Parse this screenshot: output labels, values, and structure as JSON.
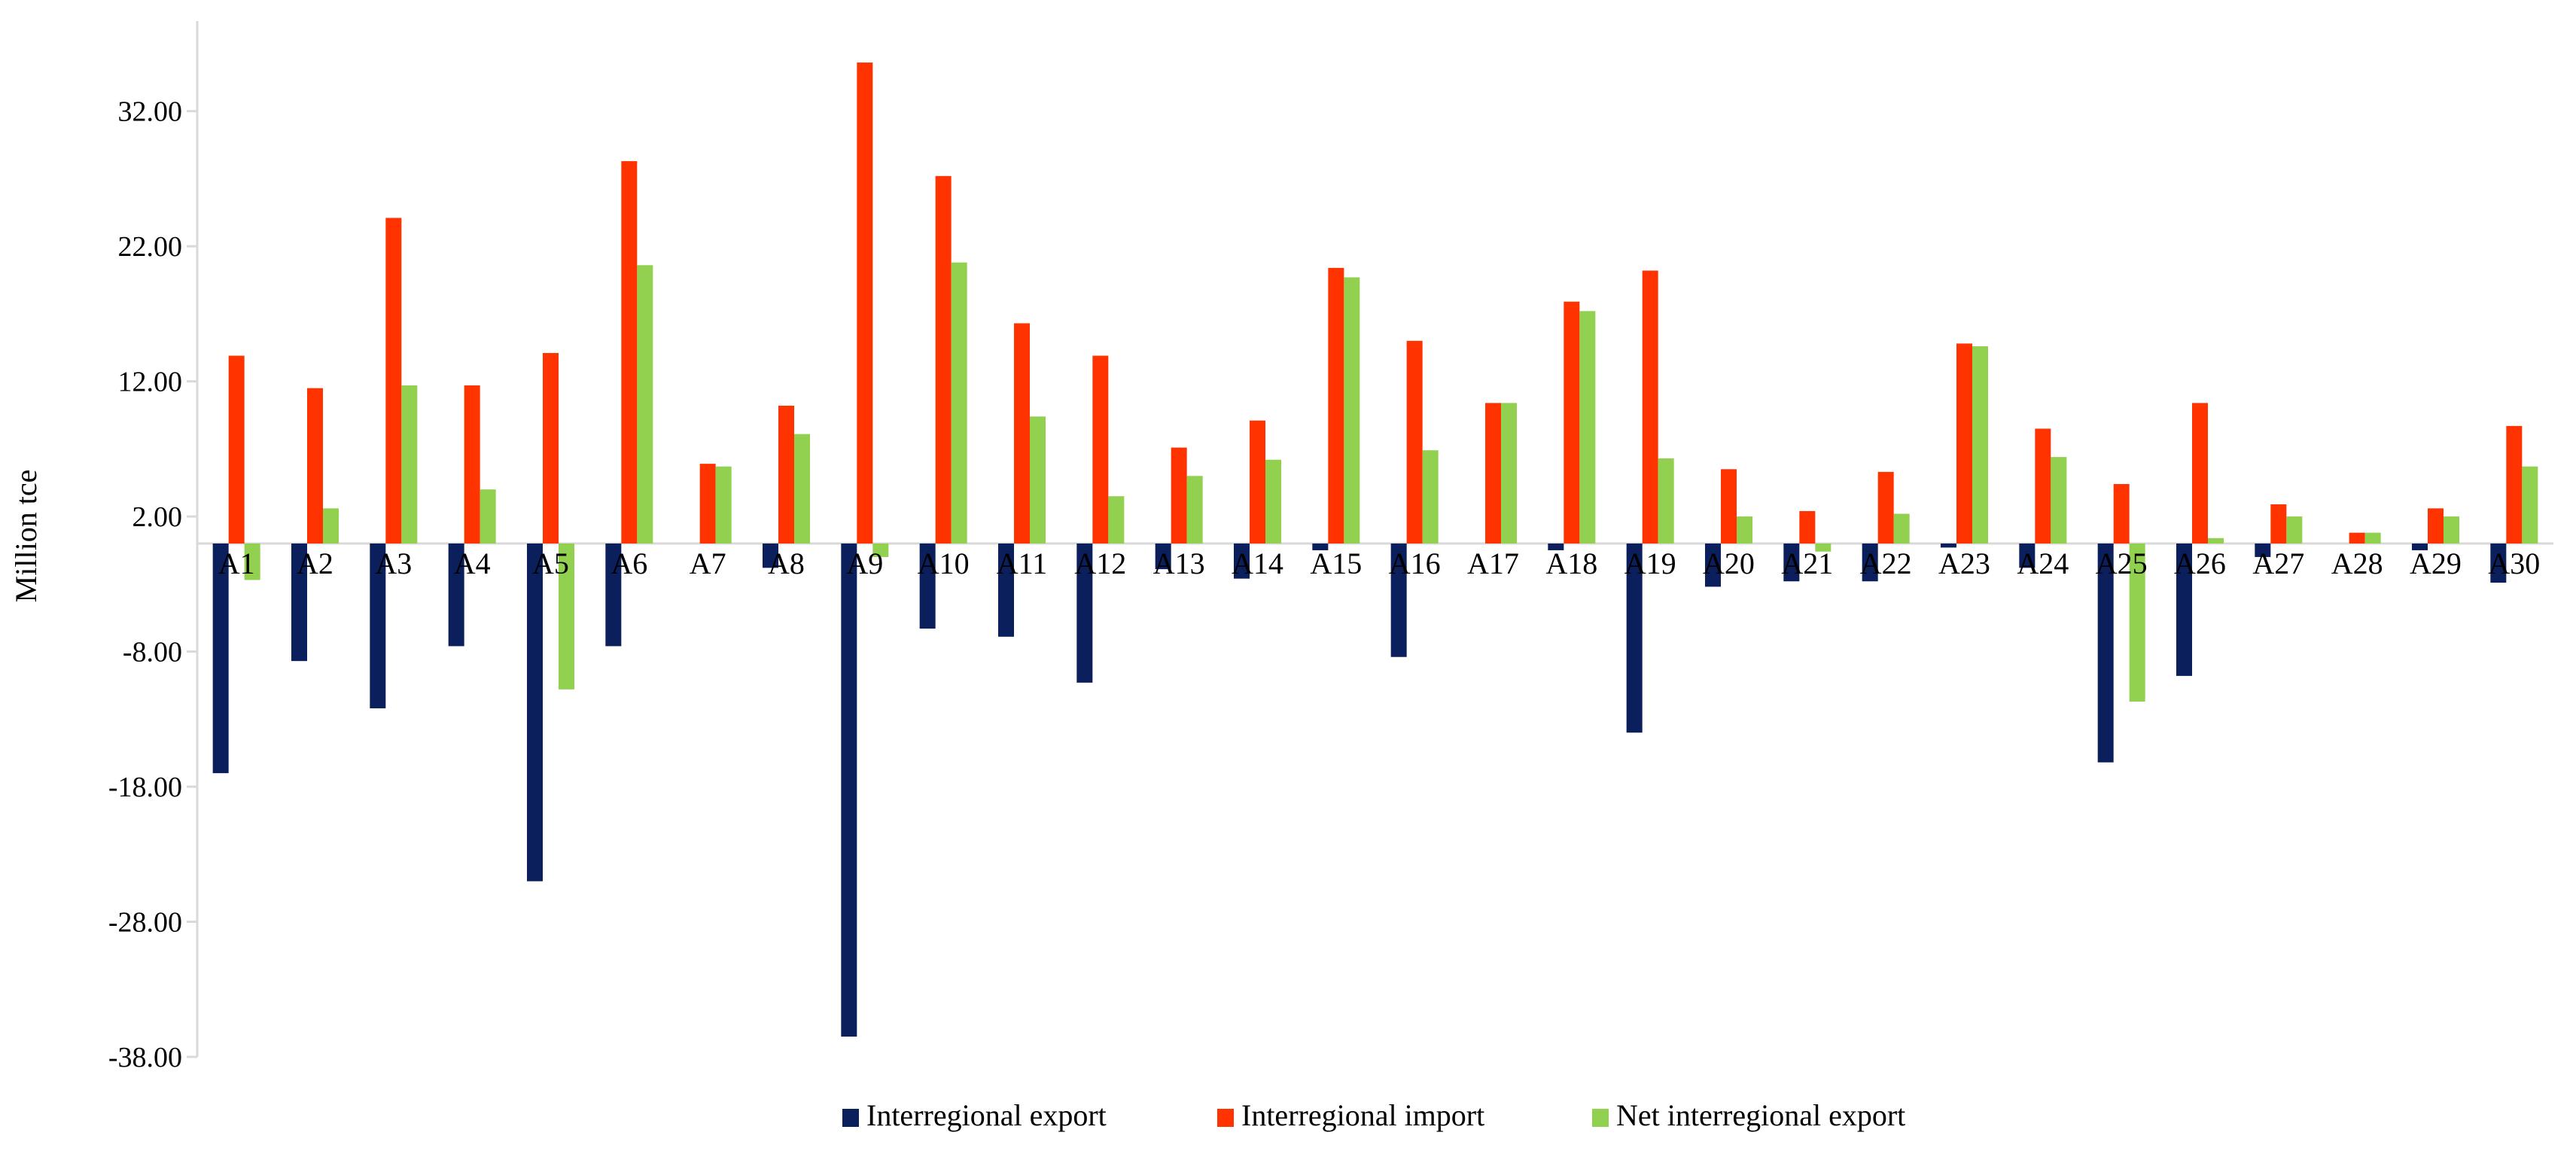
{
  "chart_data": {
    "type": "bar",
    "ylabel": "Million tce",
    "ylim": [
      -38,
      38
    ],
    "yticks": [
      32,
      22,
      12,
      2,
      -8,
      -18,
      -28,
      -38
    ],
    "ytick_labels": [
      "32.00",
      "22.00",
      "12.00",
      "2.00",
      "-8.00",
      "-18.00",
      "-28.00",
      "-38.00"
    ],
    "grid": false,
    "legend_position": "bottom",
    "categories": [
      "A1",
      "A2",
      "A3",
      "A4",
      "A5",
      "A6",
      "A7",
      "A8",
      "A9",
      "A10",
      "A11",
      "A12",
      "A13",
      "A14",
      "A15",
      "A16",
      "A17",
      "A18",
      "A19",
      "A20",
      "A21",
      "A22",
      "A23",
      "A24",
      "A25",
      "A26",
      "A27",
      "A28",
      "A29",
      "A30"
    ],
    "series": [
      {
        "name": "Interregional export",
        "color": "#0b1f5c",
        "values": [
          -17.0,
          -8.7,
          -12.2,
          -7.6,
          -25.0,
          -7.6,
          0,
          -1.8,
          -36.5,
          -6.3,
          -6.9,
          -10.3,
          -1.9,
          -2.6,
          -0.5,
          -8.4,
          0,
          -0.5,
          -14.0,
          -3.2,
          -2.8,
          -2.8,
          -0.3,
          -1.8,
          -16.2,
          -9.8,
          -1.0,
          0,
          -0.5,
          -2.9
        ]
      },
      {
        "name": "Interregional import",
        "color": "#ff3300",
        "values": [
          13.9,
          11.5,
          24.1,
          11.7,
          14.1,
          28.3,
          5.9,
          10.2,
          35.6,
          27.2,
          16.3,
          13.9,
          7.1,
          9.1,
          20.4,
          15.0,
          10.4,
          17.9,
          20.2,
          5.5,
          2.4,
          5.3,
          14.8,
          8.5,
          4.4,
          10.4,
          2.9,
          0.8,
          2.6,
          8.7
        ]
      },
      {
        "name": "Net interregional export",
        "color": "#92d050",
        "values": [
          -2.7,
          2.6,
          11.7,
          4.0,
          -10.8,
          20.6,
          5.7,
          8.1,
          -1.0,
          20.8,
          9.4,
          3.5,
          5.0,
          6.2,
          19.7,
          6.9,
          10.4,
          17.2,
          6.3,
          2.0,
          -0.6,
          2.2,
          14.6,
          6.4,
          -11.7,
          0.4,
          2.0,
          0.8,
          2.0,
          5.7
        ]
      }
    ]
  }
}
